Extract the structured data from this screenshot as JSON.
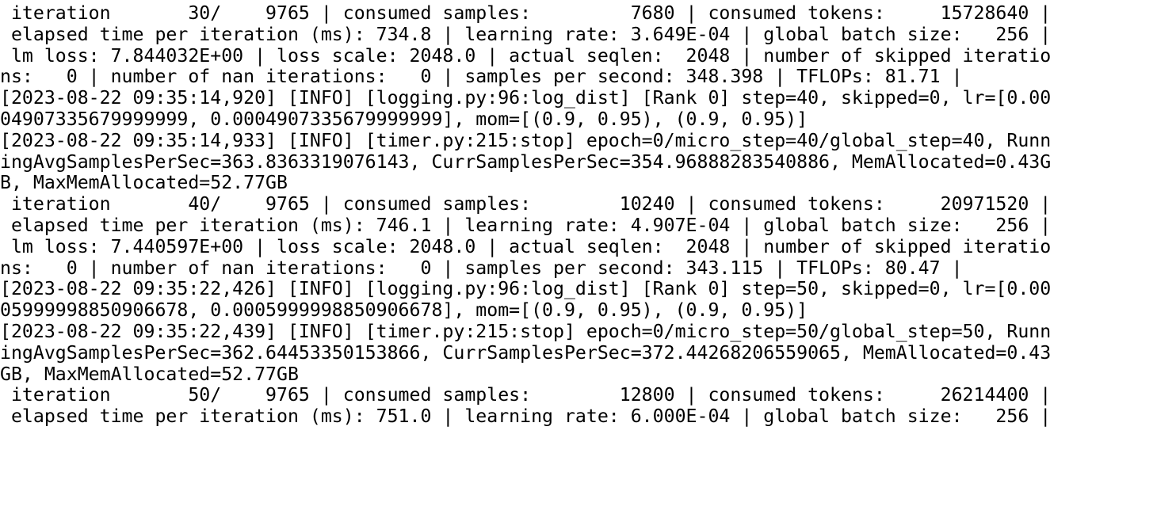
{
  "terminal": {
    "lines": [
      " iteration       30/    9765 | consumed samples:         7680 | consumed tokens:     15728640 |",
      " elapsed time per iteration (ms): 734.8 | learning rate: 3.649E-04 | global batch size:   256 |",
      " lm loss: 7.844032E+00 | loss scale: 2048.0 | actual seqlen:  2048 | number of skipped iteratio",
      "ns:   0 | number of nan iterations:   0 | samples per second: 348.398 | TFLOPs: 81.71 |",
      "[2023-08-22 09:35:14,920] [INFO] [logging.py:96:log_dist] [Rank 0] step=40, skipped=0, lr=[0.00",
      "04907335679999999, 0.0004907335679999999], mom=[(0.9, 0.95), (0.9, 0.95)]",
      "[2023-08-22 09:35:14,933] [INFO] [timer.py:215:stop] epoch=0/micro_step=40/global_step=40, Runn",
      "ingAvgSamplesPerSec=363.8363319076143, CurrSamplesPerSec=354.96888283540886, MemAllocated=0.43G",
      "B, MaxMemAllocated=52.77GB",
      " iteration       40/    9765 | consumed samples:        10240 | consumed tokens:     20971520 |",
      " elapsed time per iteration (ms): 746.1 | learning rate: 4.907E-04 | global batch size:   256 |",
      " lm loss: 7.440597E+00 | loss scale: 2048.0 | actual seqlen:  2048 | number of skipped iteratio",
      "ns:   0 | number of nan iterations:   0 | samples per second: 343.115 | TFLOPs: 80.47 |",
      "[2023-08-22 09:35:22,426] [INFO] [logging.py:96:log_dist] [Rank 0] step=50, skipped=0, lr=[0.00",
      "05999998850906678, 0.0005999998850906678], mom=[(0.9, 0.95), (0.9, 0.95)]",
      "[2023-08-22 09:35:22,439] [INFO] [timer.py:215:stop] epoch=0/micro_step=50/global_step=50, Runn",
      "ingAvgSamplesPerSec=362.64453350153866, CurrSamplesPerSec=372.44268206559065, MemAllocated=0.43",
      "GB, MaxMemAllocated=52.77GB",
      " iteration       50/    9765 | consumed samples:        12800 | consumed tokens:     26214400 |",
      " elapsed time per iteration (ms): 751.0 | learning rate: 6.000E-04 | global batch size:   256 |"
    ]
  }
}
